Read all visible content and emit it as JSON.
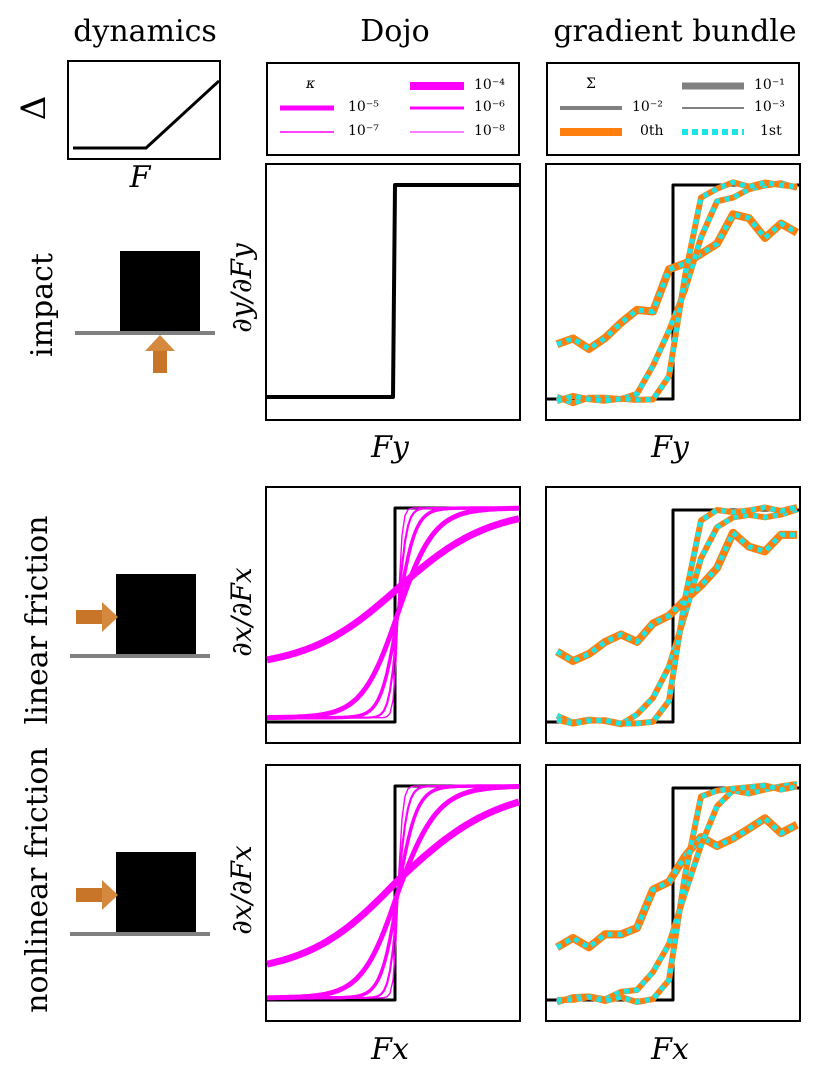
{
  "columns": {
    "dynamics": "dynamics",
    "dojo": "Dojo",
    "gradient_bundle": "gradient bundle"
  },
  "rows": {
    "impact": "impact",
    "linear": "linear friction",
    "nonlinear": "nonlinear friction"
  },
  "labels": {
    "delta": "Δ",
    "F": "F",
    "Fy": "Fy",
    "Fx": "Fx",
    "dy_dFy": "∂y/∂Fy",
    "dx_dFx": "∂x/∂Fx"
  },
  "legend_dojo": {
    "symbol": "κ",
    "entries": [
      "10⁻⁴",
      "10⁻⁵",
      "10⁻⁶",
      "10⁻⁷",
      "10⁻⁸"
    ]
  },
  "legend_bundle": {
    "symbol": "Σ",
    "entries": [
      "10⁻¹",
      "10⁻²",
      "10⁻³",
      "0th",
      "1st"
    ]
  },
  "colors": {
    "magenta": "#ff00ff",
    "orange": "#ff7f0e",
    "cyan": "#19e6e6",
    "gray": "#808080",
    "arrow": "#c8752a"
  },
  "chart_data": [
    {
      "type": "line",
      "panel": "dynamics",
      "title": "",
      "xlabel": "F",
      "ylabel": "Δ",
      "series": [
        {
          "values": [
            [
              0,
              0
            ],
            [
              0.5,
              0
            ],
            [
              1,
              0.78
            ]
          ]
        }
      ]
    },
    {
      "type": "line",
      "panel": "impact-dojo",
      "xlabel": "Fy",
      "ylabel": "∂y/∂Fy",
      "series": [
        {
          "values": [
            [
              0,
              0
            ],
            [
              0.5,
              0
            ],
            [
              0.51,
              0.85
            ],
            [
              1,
              0.85
            ]
          ]
        }
      ]
    },
    {
      "type": "line",
      "panel": "linear-dojo",
      "xlabel": "Fx",
      "ylabel": "∂x/∂Fx",
      "series": [
        {
          "name": "10⁻⁴",
          "sharpness": 5.5
        },
        {
          "name": "10⁻⁵",
          "sharpness": 14
        },
        {
          "name": "10⁻⁶",
          "sharpness": 30
        },
        {
          "name": "10⁻⁷",
          "sharpness": 60
        },
        {
          "name": "10⁻⁸",
          "sharpness": 120
        }
      ]
    },
    {
      "type": "line",
      "panel": "nonlinear-dojo",
      "xlabel": "Fx",
      "ylabel": "∂x/∂Fx"
    }
  ]
}
